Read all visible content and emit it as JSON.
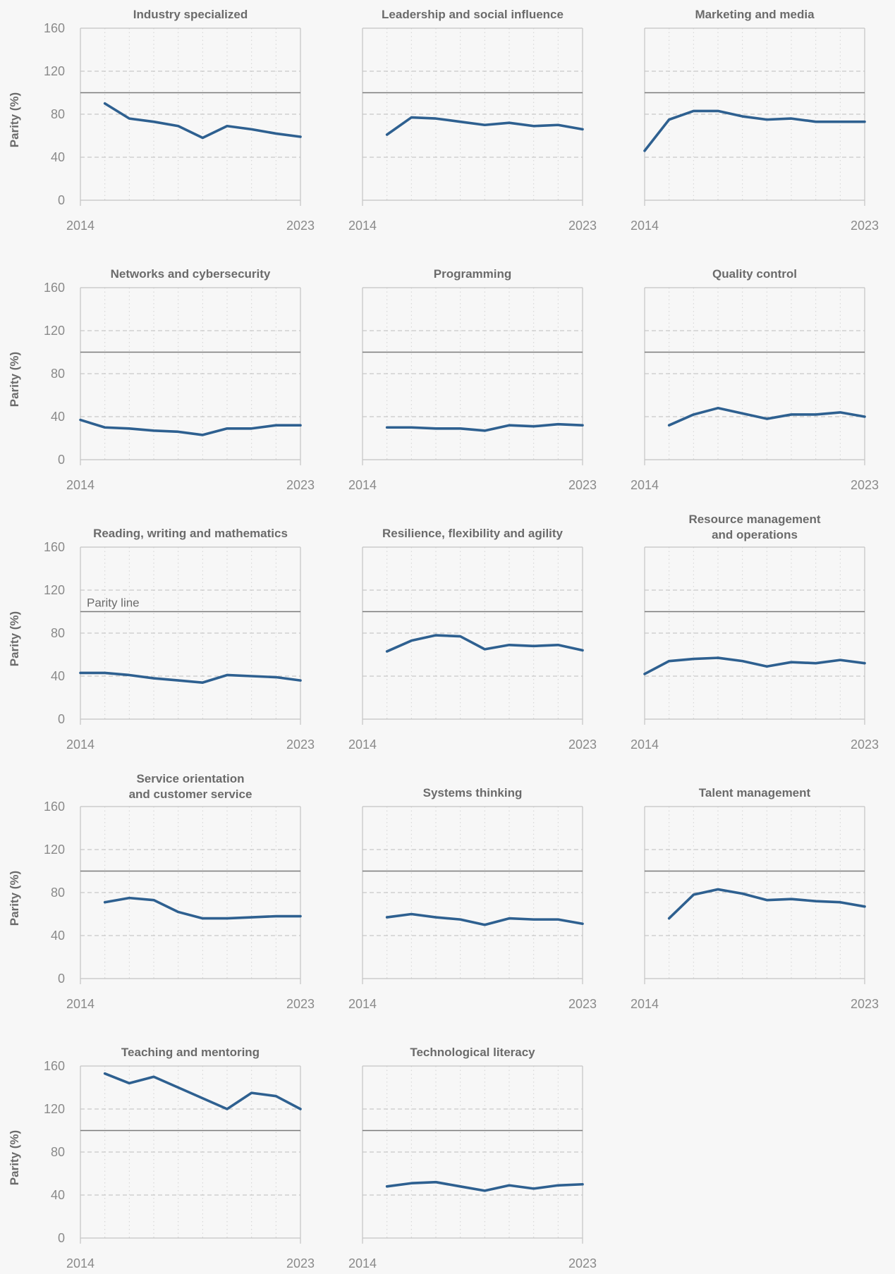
{
  "chart_data": {
    "type": "line",
    "ylabel": "Parity (%)",
    "ylim": [
      0,
      160
    ],
    "yticks": [
      0,
      40,
      80,
      120,
      160
    ],
    "xlim": [
      2014,
      2023
    ],
    "xtick_labels": [
      "2014",
      "2023"
    ],
    "reference_line": {
      "value": 100,
      "label": "Parity line"
    },
    "line_color": "#2e6090",
    "panels": [
      {
        "title": [
          "Industry specialized"
        ],
        "x": [
          2015,
          2016,
          2017,
          2018,
          2019,
          2020,
          2021,
          2022,
          2023
        ],
        "values": [
          90,
          76,
          73,
          69,
          58,
          69,
          66,
          62,
          59
        ]
      },
      {
        "title": [
          "Leadership and social influence"
        ],
        "x": [
          2015,
          2016,
          2017,
          2018,
          2019,
          2020,
          2021,
          2022,
          2023
        ],
        "values": [
          61,
          77,
          76,
          73,
          70,
          72,
          69,
          70,
          66
        ]
      },
      {
        "title": [
          "Marketing and media"
        ],
        "x": [
          2014,
          2015,
          2016,
          2017,
          2018,
          2019,
          2020,
          2021,
          2022,
          2023
        ],
        "values": [
          46,
          75,
          83,
          83,
          78,
          75,
          76,
          73,
          73,
          73
        ]
      },
      {
        "title": [
          "Networks and cybersecurity"
        ],
        "x": [
          2014,
          2015,
          2016,
          2017,
          2018,
          2019,
          2020,
          2021,
          2022,
          2023
        ],
        "values": [
          37,
          30,
          29,
          27,
          26,
          23,
          29,
          29,
          32,
          32
        ]
      },
      {
        "title": [
          "Programming"
        ],
        "x": [
          2015,
          2016,
          2017,
          2018,
          2019,
          2020,
          2021,
          2022,
          2023
        ],
        "values": [
          30,
          30,
          29,
          29,
          27,
          32,
          31,
          33,
          32
        ]
      },
      {
        "title": [
          "Quality control"
        ],
        "x": [
          2015,
          2016,
          2017,
          2018,
          2019,
          2020,
          2021,
          2022,
          2023
        ],
        "values": [
          32,
          42,
          48,
          43,
          38,
          42,
          42,
          44,
          40
        ]
      },
      {
        "title": [
          "Reading, writing and mathematics"
        ],
        "x": [
          2014,
          2015,
          2016,
          2017,
          2018,
          2019,
          2020,
          2021,
          2022,
          2023
        ],
        "values": [
          43,
          43,
          41,
          38,
          36,
          34,
          41,
          40,
          39,
          36
        ]
      },
      {
        "title": [
          "Resilience, flexibility and agility"
        ],
        "x": [
          2015,
          2016,
          2017,
          2018,
          2019,
          2020,
          2021,
          2022,
          2023
        ],
        "values": [
          63,
          73,
          78,
          77,
          65,
          69,
          68,
          69,
          64
        ]
      },
      {
        "title": [
          "Resource management",
          "and operations"
        ],
        "x": [
          2014,
          2015,
          2016,
          2017,
          2018,
          2019,
          2020,
          2021,
          2022,
          2023
        ],
        "values": [
          42,
          54,
          56,
          57,
          54,
          49,
          53,
          52,
          55,
          52
        ]
      },
      {
        "title": [
          "Service orientation",
          "and customer service"
        ],
        "x": [
          2015,
          2016,
          2017,
          2018,
          2019,
          2020,
          2021,
          2022,
          2023
        ],
        "values": [
          71,
          75,
          73,
          62,
          56,
          56,
          57,
          58,
          58
        ]
      },
      {
        "title": [
          "Systems thinking"
        ],
        "x": [
          2015,
          2016,
          2017,
          2018,
          2019,
          2020,
          2021,
          2022,
          2023
        ],
        "values": [
          57,
          60,
          57,
          55,
          50,
          56,
          55,
          55,
          51
        ]
      },
      {
        "title": [
          "Talent management"
        ],
        "x": [
          2015,
          2016,
          2017,
          2018,
          2019,
          2020,
          2021,
          2022,
          2023
        ],
        "values": [
          56,
          78,
          83,
          79,
          73,
          74,
          72,
          71,
          67
        ]
      },
      {
        "title": [
          "Teaching and mentoring"
        ],
        "x": [
          2015,
          2016,
          2017,
          2018,
          2019,
          2020,
          2021,
          2022,
          2023
        ],
        "values": [
          153,
          144,
          150,
          140,
          130,
          120,
          135,
          132,
          120
        ]
      },
      {
        "title": [
          "Technological literacy"
        ],
        "x": [
          2015,
          2016,
          2017,
          2018,
          2019,
          2020,
          2021,
          2022,
          2023
        ],
        "values": [
          48,
          51,
          52,
          48,
          44,
          49,
          46,
          49,
          50
        ]
      }
    ]
  }
}
